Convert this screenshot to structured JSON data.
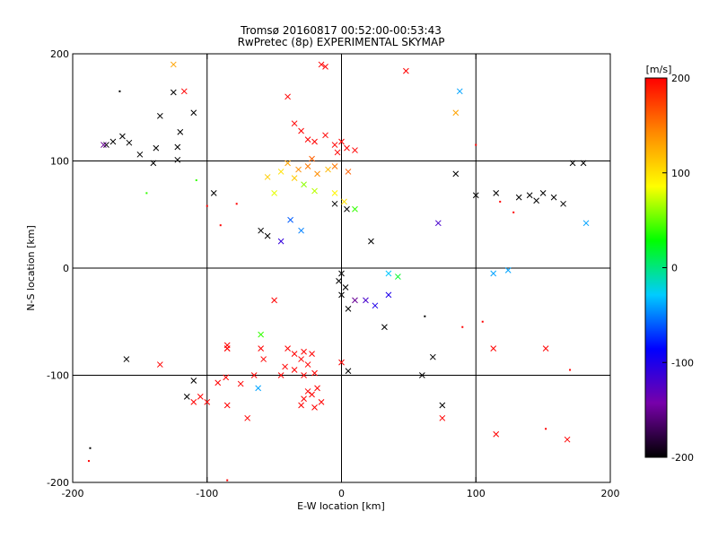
{
  "chart_data": {
    "type": "scatter",
    "title": "Tromsø 20160817 00:52:00-00:53:43",
    "subtitle": "RwPretec (8p) EXPERIMENTAL SKYMAP",
    "xlabel": "E-W location [km]",
    "ylabel": "N-S location [km]",
    "xlim": [
      -200,
      200
    ],
    "ylim": [
      -200,
      200
    ],
    "xticks": [
      "-200",
      "-100",
      "0",
      "100",
      "200"
    ],
    "yticks": [
      "-200",
      "-100",
      "0",
      "100",
      "200"
    ],
    "grid_lines": [
      -100,
      0,
      100
    ],
    "colorbar": {
      "label": "[m/s]",
      "range": [
        -200,
        200
      ],
      "ticks": [
        "200",
        "100",
        "0",
        "-100",
        "-200"
      ],
      "colors": [
        "#000000",
        "#7700aa",
        "#0000ff",
        "#00ccff",
        "#00ff00",
        "#ffff00",
        "#ff8800",
        "#ff0000"
      ]
    },
    "points": [
      {
        "x": -175,
        "y": 115,
        "v": -200,
        "m": "x"
      },
      {
        "x": -170,
        "y": 118,
        "v": -200,
        "m": "x"
      },
      {
        "x": -163,
        "y": 123,
        "v": -200,
        "m": "x"
      },
      {
        "x": -158,
        "y": 117,
        "v": -200,
        "m": "x"
      },
      {
        "x": -150,
        "y": 106,
        "v": -200,
        "m": "x"
      },
      {
        "x": -140,
        "y": 98,
        "v": -200,
        "m": "x"
      },
      {
        "x": -138,
        "y": 112,
        "v": -200,
        "m": "x"
      },
      {
        "x": -135,
        "y": 142,
        "v": -200,
        "m": "x"
      },
      {
        "x": -122,
        "y": 101,
        "v": -200,
        "m": "x"
      },
      {
        "x": -122,
        "y": 113,
        "v": -200,
        "m": "x"
      },
      {
        "x": -120,
        "y": 127,
        "v": -200,
        "m": "x"
      },
      {
        "x": -110,
        "y": 145,
        "v": -200,
        "m": "x"
      },
      {
        "x": -125,
        "y": 164,
        "v": -200,
        "m": "x"
      },
      {
        "x": -117,
        "y": 165,
        "v": 200,
        "m": "x"
      },
      {
        "x": -125,
        "y": 190,
        "v": 130,
        "m": "x"
      },
      {
        "x": -95,
        "y": 70,
        "v": -200,
        "m": "x"
      },
      {
        "x": -177,
        "y": 115,
        "v": -150,
        "m": "x"
      },
      {
        "x": 85,
        "y": 88,
        "v": -200,
        "m": "x"
      },
      {
        "x": 100,
        "y": 68,
        "v": -200,
        "m": "x"
      },
      {
        "x": 115,
        "y": 70,
        "v": -200,
        "m": "x"
      },
      {
        "x": 132,
        "y": 66,
        "v": -200,
        "m": "x"
      },
      {
        "x": 140,
        "y": 68,
        "v": -200,
        "m": "x"
      },
      {
        "x": 145,
        "y": 63,
        "v": -200,
        "m": "x"
      },
      {
        "x": 150,
        "y": 70,
        "v": -200,
        "m": "x"
      },
      {
        "x": 158,
        "y": 66,
        "v": -200,
        "m": "x"
      },
      {
        "x": 165,
        "y": 60,
        "v": -200,
        "m": "x"
      },
      {
        "x": 172,
        "y": 98,
        "v": -200,
        "m": "x"
      },
      {
        "x": 180,
        "y": 98,
        "v": -200,
        "m": "x"
      },
      {
        "x": 182,
        "y": 42,
        "v": -40,
        "m": "x"
      },
      {
        "x": 72,
        "y": 42,
        "v": -120,
        "m": "x"
      },
      {
        "x": 85,
        "y": 145,
        "v": 130,
        "m": "x"
      },
      {
        "x": 88,
        "y": 165,
        "v": -40,
        "m": "x"
      },
      {
        "x": 48,
        "y": 184,
        "v": 200,
        "m": "x"
      },
      {
        "x": -15,
        "y": 190,
        "v": 200,
        "m": "x"
      },
      {
        "x": -12,
        "y": 188,
        "v": 200,
        "m": "x"
      },
      {
        "x": -40,
        "y": 160,
        "v": 200,
        "m": "x"
      },
      {
        "x": -35,
        "y": 135,
        "v": 200,
        "m": "x"
      },
      {
        "x": -30,
        "y": 128,
        "v": 200,
        "m": "x"
      },
      {
        "x": -25,
        "y": 120,
        "v": 200,
        "m": "x"
      },
      {
        "x": -20,
        "y": 118,
        "v": 200,
        "m": "x"
      },
      {
        "x": -12,
        "y": 124,
        "v": 200,
        "m": "x"
      },
      {
        "x": -5,
        "y": 115,
        "v": 200,
        "m": "x"
      },
      {
        "x": 0,
        "y": 118,
        "v": 200,
        "m": "x"
      },
      {
        "x": 4,
        "y": 112,
        "v": 200,
        "m": "x"
      },
      {
        "x": 10,
        "y": 110,
        "v": 200,
        "m": "x"
      },
      {
        "x": -3,
        "y": 108,
        "v": 200,
        "m": "x"
      },
      {
        "x": -40,
        "y": 98,
        "v": 130,
        "m": "x"
      },
      {
        "x": -32,
        "y": 92,
        "v": 140,
        "m": "x"
      },
      {
        "x": -25,
        "y": 95,
        "v": 150,
        "m": "x"
      },
      {
        "x": -18,
        "y": 88,
        "v": 140,
        "m": "x"
      },
      {
        "x": -10,
        "y": 92,
        "v": 120,
        "m": "x"
      },
      {
        "x": -5,
        "y": 95,
        "v": 150,
        "m": "x"
      },
      {
        "x": 5,
        "y": 90,
        "v": 160,
        "m": "x"
      },
      {
        "x": -35,
        "y": 84,
        "v": 110,
        "m": "x"
      },
      {
        "x": -45,
        "y": 90,
        "v": 100,
        "m": "x"
      },
      {
        "x": -22,
        "y": 102,
        "v": 160,
        "m": "x"
      },
      {
        "x": -28,
        "y": 78,
        "v": 60,
        "m": "x"
      },
      {
        "x": -20,
        "y": 72,
        "v": 70,
        "m": "x"
      },
      {
        "x": -5,
        "y": 70,
        "v": 90,
        "m": "x"
      },
      {
        "x": -50,
        "y": 70,
        "v": 80,
        "m": "x"
      },
      {
        "x": -55,
        "y": 85,
        "v": 110,
        "m": "x"
      },
      {
        "x": -38,
        "y": 45,
        "v": -60,
        "m": "x"
      },
      {
        "x": -30,
        "y": 35,
        "v": -50,
        "m": "x"
      },
      {
        "x": -45,
        "y": 25,
        "v": -110,
        "m": "x"
      },
      {
        "x": -60,
        "y": 35,
        "v": -200,
        "m": "x"
      },
      {
        "x": -55,
        "y": 30,
        "v": -200,
        "m": "x"
      },
      {
        "x": -5,
        "y": 60,
        "v": -200,
        "m": "x"
      },
      {
        "x": 4,
        "y": 55,
        "v": -200,
        "m": "x"
      },
      {
        "x": 22,
        "y": 25,
        "v": -200,
        "m": "x"
      },
      {
        "x": 2,
        "y": 62,
        "v": 100,
        "m": "x"
      },
      {
        "x": 10,
        "y": 55,
        "v": 40,
        "m": "x"
      },
      {
        "x": 0,
        "y": -5,
        "v": -200,
        "m": "x"
      },
      {
        "x": -2,
        "y": -12,
        "v": -200,
        "m": "x"
      },
      {
        "x": 3,
        "y": -18,
        "v": -200,
        "m": "x"
      },
      {
        "x": 0,
        "y": -25,
        "v": -200,
        "m": "x"
      },
      {
        "x": 10,
        "y": -30,
        "v": -150,
        "m": "x"
      },
      {
        "x": 18,
        "y": -30,
        "v": -120,
        "m": "x"
      },
      {
        "x": 5,
        "y": -38,
        "v": -200,
        "m": "x"
      },
      {
        "x": 25,
        "y": -35,
        "v": -100,
        "m": "x"
      },
      {
        "x": 35,
        "y": -25,
        "v": -100,
        "m": "x"
      },
      {
        "x": 35,
        "y": -5,
        "v": -30,
        "m": "x"
      },
      {
        "x": 42,
        "y": -8,
        "v": 20,
        "m": "x"
      },
      {
        "x": 32,
        "y": -55,
        "v": -200,
        "m": "x"
      },
      {
        "x": 113,
        "y": -5,
        "v": -40,
        "m": "x"
      },
      {
        "x": 124,
        "y": -2,
        "v": -40,
        "m": "x"
      },
      {
        "x": -50,
        "y": -30,
        "v": 200,
        "m": "x"
      },
      {
        "x": -60,
        "y": -62,
        "v": 40,
        "m": "x"
      },
      {
        "x": -60,
        "y": -75,
        "v": 200,
        "m": "x"
      },
      {
        "x": -58,
        "y": -85,
        "v": 200,
        "m": "x"
      },
      {
        "x": -40,
        "y": -75,
        "v": 200,
        "m": "x"
      },
      {
        "x": -35,
        "y": -80,
        "v": 200,
        "m": "x"
      },
      {
        "x": -30,
        "y": -85,
        "v": 200,
        "m": "x"
      },
      {
        "x": -28,
        "y": -78,
        "v": 200,
        "m": "x"
      },
      {
        "x": -25,
        "y": -90,
        "v": 200,
        "m": "x"
      },
      {
        "x": -22,
        "y": -80,
        "v": 200,
        "m": "x"
      },
      {
        "x": -35,
        "y": -95,
        "v": 200,
        "m": "x"
      },
      {
        "x": -28,
        "y": -100,
        "v": 200,
        "m": "x"
      },
      {
        "x": -42,
        "y": -92,
        "v": 200,
        "m": "x"
      },
      {
        "x": -45,
        "y": -100,
        "v": 200,
        "m": "x"
      },
      {
        "x": -20,
        "y": -98,
        "v": 200,
        "m": "x"
      },
      {
        "x": -25,
        "y": -115,
        "v": 200,
        "m": "x"
      },
      {
        "x": -28,
        "y": -122,
        "v": 200,
        "m": "x"
      },
      {
        "x": -22,
        "y": -118,
        "v": 200,
        "m": "x"
      },
      {
        "x": -18,
        "y": -112,
        "v": 200,
        "m": "x"
      },
      {
        "x": -20,
        "y": -130,
        "v": 200,
        "m": "x"
      },
      {
        "x": -15,
        "y": -125,
        "v": 200,
        "m": "x"
      },
      {
        "x": -30,
        "y": -128,
        "v": 200,
        "m": "x"
      },
      {
        "x": -62,
        "y": -112,
        "v": -40,
        "m": "x"
      },
      {
        "x": -65,
        "y": -100,
        "v": 200,
        "m": "x"
      },
      {
        "x": -75,
        "y": -108,
        "v": 200,
        "m": "x"
      },
      {
        "x": -86,
        "y": -102,
        "v": 200,
        "m": "x"
      },
      {
        "x": -92,
        "y": -107,
        "v": 200,
        "m": "x"
      },
      {
        "x": -110,
        "y": -105,
        "v": -200,
        "m": "x"
      },
      {
        "x": -115,
        "y": -120,
        "v": -200,
        "m": "x"
      },
      {
        "x": -110,
        "y": -125,
        "v": 200,
        "m": "x"
      },
      {
        "x": -105,
        "y": -120,
        "v": 200,
        "m": "x"
      },
      {
        "x": -100,
        "y": -125,
        "v": 200,
        "m": "x"
      },
      {
        "x": -85,
        "y": -128,
        "v": 200,
        "m": "x"
      },
      {
        "x": -70,
        "y": -140,
        "v": 200,
        "m": "x"
      },
      {
        "x": -160,
        "y": -85,
        "v": -200,
        "m": "x"
      },
      {
        "x": -135,
        "y": -90,
        "v": 200,
        "m": "x"
      },
      {
        "x": -85,
        "y": -72,
        "v": 200,
        "m": "x"
      },
      {
        "x": -85,
        "y": -75,
        "v": 200,
        "m": "x"
      },
      {
        "x": -85,
        "y": -75,
        "v": 200,
        "m": "x"
      },
      {
        "x": 0,
        "y": -88,
        "v": 200,
        "m": "x"
      },
      {
        "x": 5,
        "y": -96,
        "v": -200,
        "m": "x"
      },
      {
        "x": 60,
        "y": -100,
        "v": -200,
        "m": "x"
      },
      {
        "x": 68,
        "y": -83,
        "v": -200,
        "m": "x"
      },
      {
        "x": 75,
        "y": -128,
        "v": -200,
        "m": "x"
      },
      {
        "x": 75,
        "y": -140,
        "v": 200,
        "m": "x"
      },
      {
        "x": 113,
        "y": -75,
        "v": 200,
        "m": "x"
      },
      {
        "x": 115,
        "y": -155,
        "v": 200,
        "m": "x"
      },
      {
        "x": 152,
        "y": -75,
        "v": 200,
        "m": "x"
      },
      {
        "x": 168,
        "y": -160,
        "v": 200,
        "m": "x"
      }
    ],
    "dots": [
      {
        "x": -187,
        "y": -168,
        "v": -200
      },
      {
        "x": -188,
        "y": -180,
        "v": 200
      },
      {
        "x": -85,
        "y": -198,
        "v": 200
      },
      {
        "x": 118,
        "y": 62,
        "v": 200
      },
      {
        "x": 128,
        "y": 52,
        "v": 200
      },
      {
        "x": 170,
        "y": -95,
        "v": 200
      },
      {
        "x": 152,
        "y": -150,
        "v": 200
      },
      {
        "x": 100,
        "y": 115,
        "v": 200
      },
      {
        "x": 105,
        "y": -50,
        "v": 200
      },
      {
        "x": 90,
        "y": -55,
        "v": 200
      },
      {
        "x": 62,
        "y": -45,
        "v": -200
      },
      {
        "x": -78,
        "y": 60,
        "v": 200
      },
      {
        "x": -90,
        "y": 40,
        "v": 200
      },
      {
        "x": -100,
        "y": 58,
        "v": 200
      },
      {
        "x": -108,
        "y": 82,
        "v": 40
      },
      {
        "x": -165,
        "y": 165,
        "v": -200
      },
      {
        "x": -145,
        "y": 70,
        "v": 40
      }
    ]
  }
}
